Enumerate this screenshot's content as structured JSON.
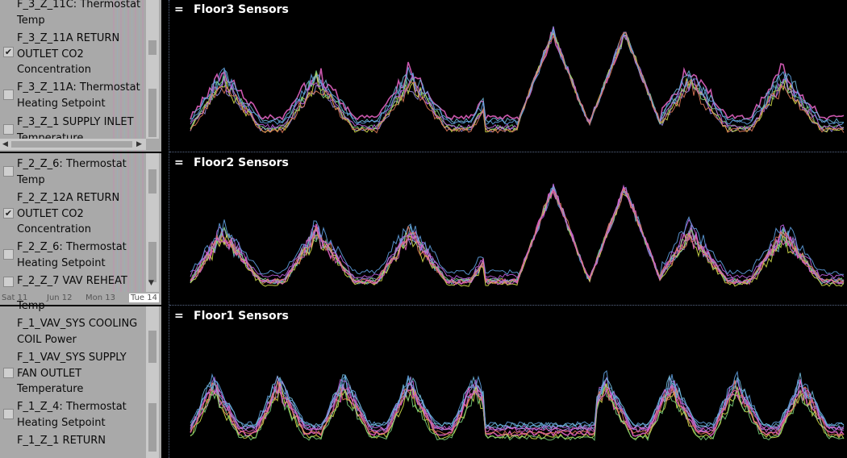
{
  "panels": [
    {
      "title": "Floor3 Sensors",
      "items": [
        {
          "label": "F_3_Z_11C: Thermostat Temp",
          "checked": false
        },
        {
          "label": "F_3_Z_11A RETURN OUTLET CO2 Concentration",
          "checked": true
        },
        {
          "label": "F_3_Z_11A: Thermostat Heating Setpoint",
          "checked": false
        },
        {
          "label": "F_3_Z_1 SUPPLY INLET Temperature",
          "checked": false
        }
      ]
    },
    {
      "title": "Floor2 Sensors",
      "items": [
        {
          "label": "F_2_Z_6: Thermostat Temp",
          "checked": false
        },
        {
          "label": "F_2_Z_12A RETURN OUTLET CO2 Concentration",
          "checked": true
        },
        {
          "label": "F_2_Z_6: Thermostat Heating Setpoint",
          "checked": false
        },
        {
          "label": "F_2_Z_7 VAV REHEAT",
          "checked": false
        }
      ]
    },
    {
      "title": "Floor1 Sensors",
      "items": [
        {
          "label": "Temp",
          "checked": false
        },
        {
          "label": "F_1_VAV_SYS COOLING COIL Power",
          "checked": false
        },
        {
          "label": "F_1_VAV_SYS SUPPLY FAN OUTLET Temperature",
          "checked": false
        },
        {
          "label": "F_1_Z_4: Thermostat Heating Setpoint",
          "checked": false
        },
        {
          "label": "F_1_Z_1 RETURN",
          "checked": false
        }
      ]
    }
  ],
  "timeline": [
    "Sat 11",
    "Jun 12",
    "Mon 13",
    "Tue 14"
  ],
  "menu_icon": "=",
  "checkmark": "✔",
  "arrows": {
    "up": "▲",
    "down": "▼",
    "left": "◀",
    "right": "▶"
  },
  "colors": {
    "series": [
      "#e060c0",
      "#6fb7d8",
      "#9a8ce0",
      "#d4e04a",
      "#7ad27a",
      "#c060e0",
      "#5fa0e0",
      "#e07a5a"
    ],
    "panel_bg": "#a9a9a9",
    "background": "#000000"
  }
}
